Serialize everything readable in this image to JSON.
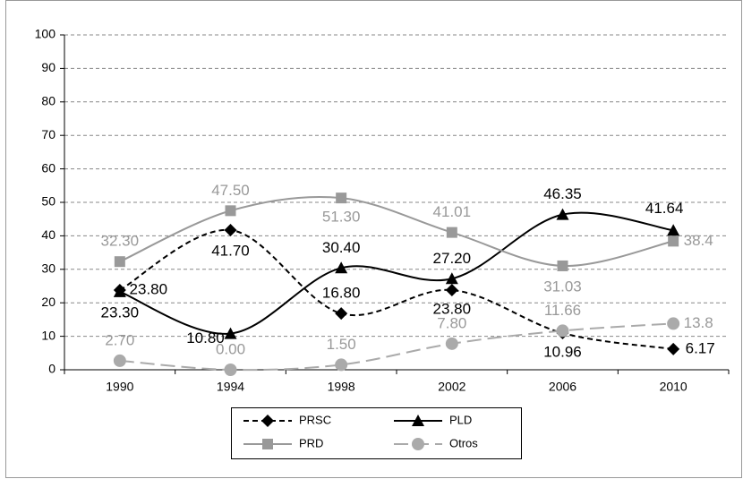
{
  "chart_data": {
    "type": "line",
    "categories": [
      "1990",
      "1994",
      "1998",
      "2002",
      "2006",
      "2010"
    ],
    "ylim": [
      0,
      100
    ],
    "yticks": [
      0,
      10,
      20,
      30,
      40,
      50,
      60,
      70,
      80,
      90,
      100
    ],
    "grid": true,
    "series": [
      {
        "name": "PRSC",
        "color": "#000000",
        "marker": "diamond",
        "dash": "dashed",
        "values": [
          23.8,
          41.7,
          16.8,
          23.8,
          10.96,
          6.17
        ],
        "value_labels": [
          "23.80",
          "41.70",
          "16.80",
          "23.80",
          "10.96",
          "6.17"
        ]
      },
      {
        "name": "PLD",
        "color": "#000000",
        "marker": "triangle",
        "dash": "solid",
        "values": [
          23.3,
          10.8,
          30.4,
          27.2,
          46.35,
          41.64
        ],
        "value_labels": [
          "23.30",
          "10.80",
          "30.40",
          "27.20",
          "46.35",
          "41.64"
        ]
      },
      {
        "name": "PRD",
        "color": "#999999",
        "marker": "square",
        "dash": "solid",
        "values": [
          32.3,
          47.5,
          51.3,
          41.01,
          31.03,
          38.4
        ],
        "value_labels": [
          "32.30",
          "47.50",
          "51.30",
          "41.01",
          "31.03",
          "38.4"
        ]
      },
      {
        "name": "Otros",
        "color": "#aaaaaa",
        "marker": "circle",
        "dash": "longdash",
        "values": [
          2.7,
          0.0,
          1.5,
          7.8,
          11.66,
          13.8
        ],
        "value_labels": [
          "2.70",
          "0.00",
          "1.50",
          "7.80",
          "11.66",
          "13.8"
        ]
      }
    ]
  }
}
